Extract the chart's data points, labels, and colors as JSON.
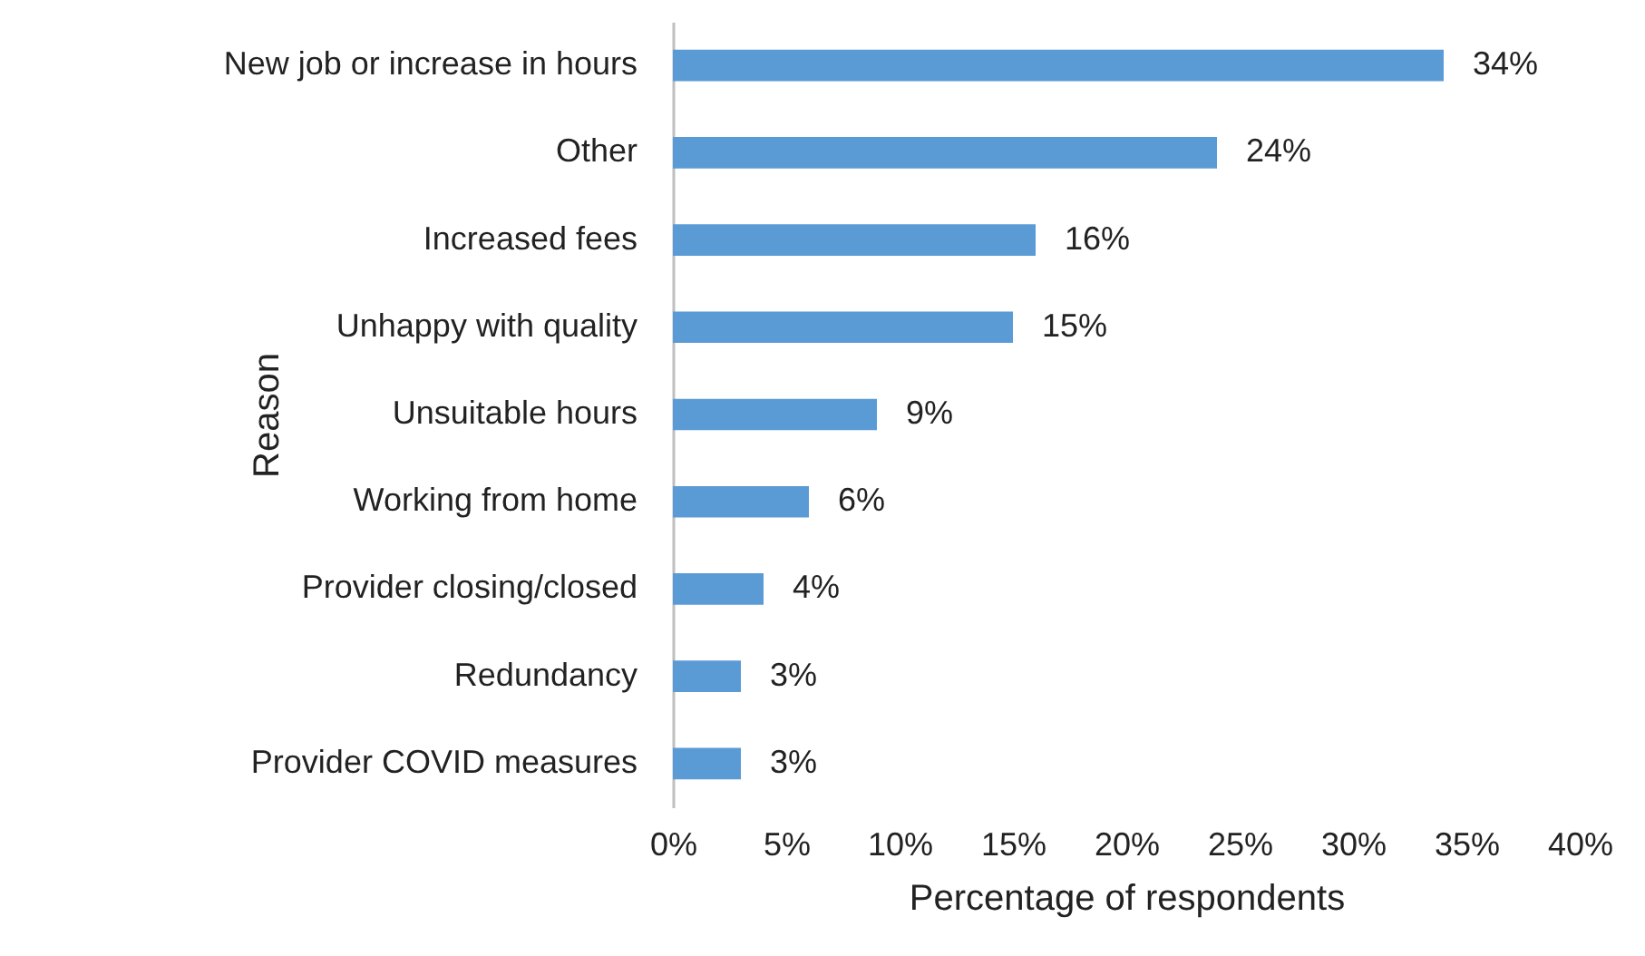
{
  "chart_data": {
    "type": "bar",
    "orientation": "horizontal",
    "xlabel": "Percentage of respondents",
    "ylabel": "Reason",
    "categories": [
      "New job or increase in hours",
      "Other",
      "Increased fees",
      "Unhappy with quality",
      "Unsuitable hours",
      "Working from home",
      "Provider closing/closed",
      "Redundancy",
      "Provider COVID measures"
    ],
    "values": [
      34,
      24,
      16,
      15,
      9,
      6,
      4,
      3,
      3
    ],
    "value_labels": [
      "34%",
      "24%",
      "16%",
      "15%",
      "9%",
      "6%",
      "4%",
      "3%",
      "3%"
    ],
    "color": "#5b9bd5",
    "xlim": [
      0,
      40
    ],
    "xticks": [
      {
        "value": 0,
        "label": "0%"
      },
      {
        "value": 5,
        "label": "5%"
      },
      {
        "value": 10,
        "label": "10%"
      },
      {
        "value": 15,
        "label": "15%"
      },
      {
        "value": 20,
        "label": "20%"
      },
      {
        "value": 25,
        "label": "25%"
      },
      {
        "value": 30,
        "label": "30%"
      },
      {
        "value": 35,
        "label": "35%"
      },
      {
        "value": 40,
        "label": "40%"
      }
    ],
    "grid": false
  }
}
